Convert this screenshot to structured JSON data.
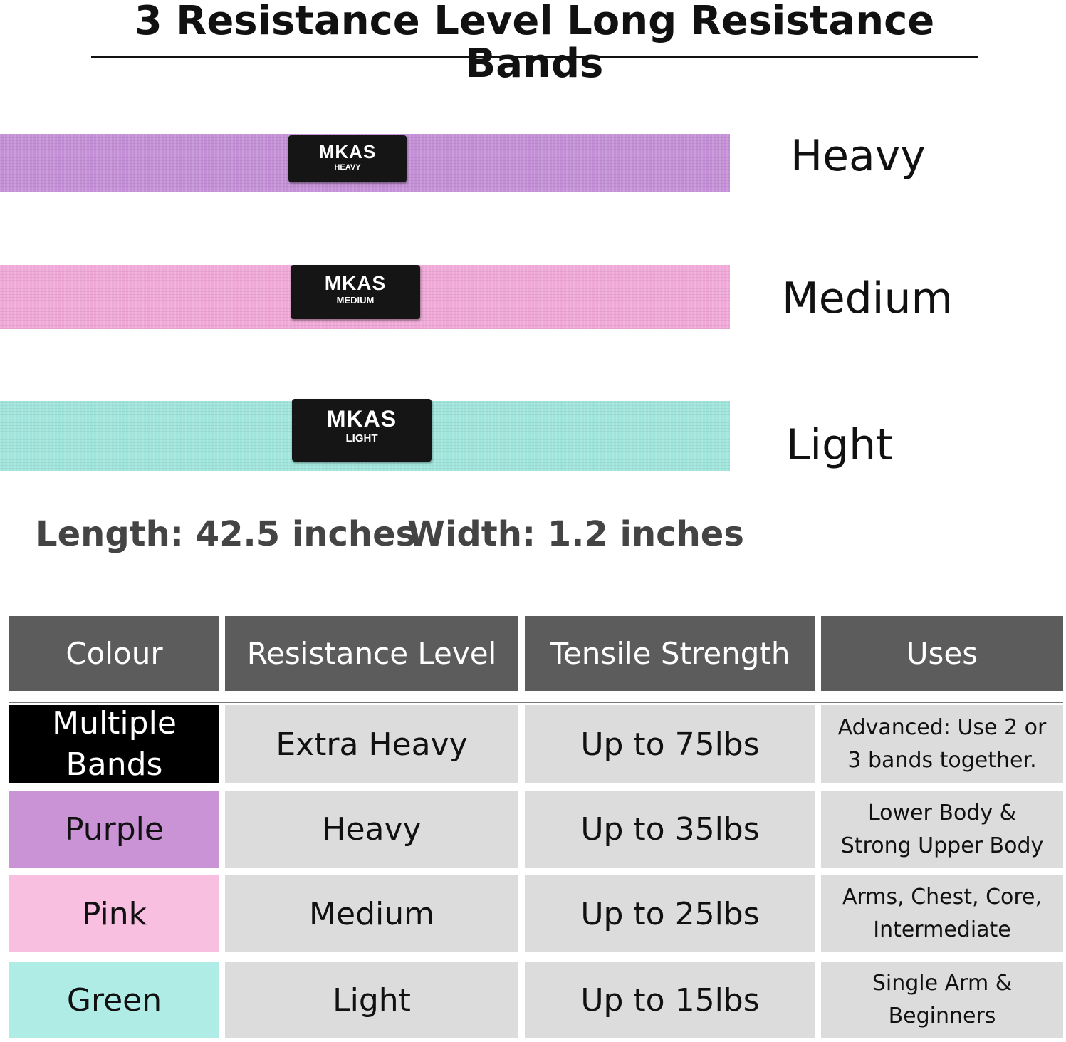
{
  "title": "3 Resistance Level Long Resistance Bands",
  "bands": [
    {
      "brand": "MKAS",
      "patch_label": "HEAVY",
      "label": "Heavy",
      "color": "#c48fd6"
    },
    {
      "brand": "MKAS",
      "patch_label": "MEDIUM",
      "label": "Medium",
      "color": "#f0a8d8"
    },
    {
      "brand": "MKAS",
      "patch_label": "LIGHT",
      "label": "Light",
      "color": "#9fe5dc"
    }
  ],
  "dimensions": {
    "length": "Length: 42.5 inches",
    "width": "Width: 1.2 inches"
  },
  "table": {
    "headers": [
      "Colour",
      "Resistance Level",
      "Tensile Strength",
      "Uses"
    ],
    "rows": [
      {
        "colour": "Multiple Bands",
        "colour_bg": "#000000",
        "colour_fg": "#ffffff",
        "level": "Extra Heavy",
        "strength": "Up to 75lbs",
        "uses": "Advanced: Use 2 or 3 bands together."
      },
      {
        "colour": "Purple",
        "colour_bg": "#c993d6",
        "colour_fg": "#111111",
        "level": "Heavy",
        "strength": "Up to 35lbs",
        "uses": "Lower Body & Strong Upper Body"
      },
      {
        "colour": "Pink",
        "colour_bg": "#f8bfe0",
        "colour_fg": "#111111",
        "level": "Medium",
        "strength": "Up to 25lbs",
        "uses": "Arms, Chest, Core, Intermediate"
      },
      {
        "colour": "Green",
        "colour_bg": "#aeece5",
        "colour_fg": "#111111",
        "level": "Light",
        "strength": "Up to 15lbs",
        "uses": "Single Arm & Beginners"
      }
    ]
  }
}
